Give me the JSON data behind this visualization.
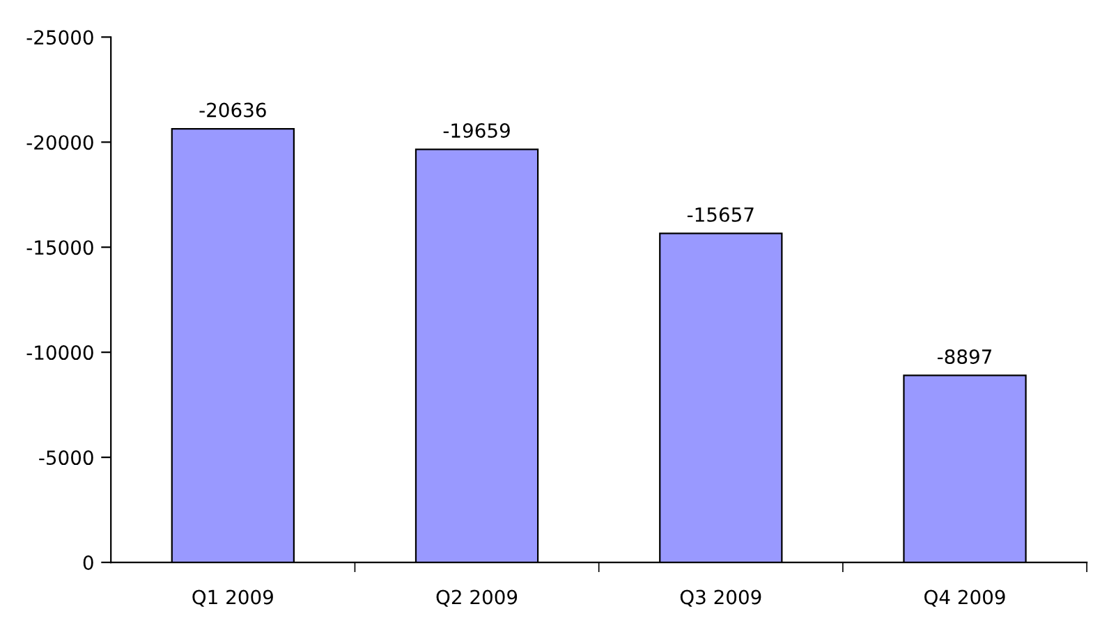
{
  "chart_data": {
    "type": "bar",
    "categories": [
      "Q1 2009",
      "Q2 2009",
      "Q3 2009",
      "Q4 2009"
    ],
    "values": [
      -20636,
      -19659,
      -15657,
      -8897
    ],
    "color": "#9999ff",
    "ylim": [
      0,
      -25000
    ],
    "yticks": [
      0,
      -5000,
      -10000,
      -15000,
      -20000,
      -25000
    ],
    "data_labels": true,
    "grid": false,
    "legend": false
  }
}
